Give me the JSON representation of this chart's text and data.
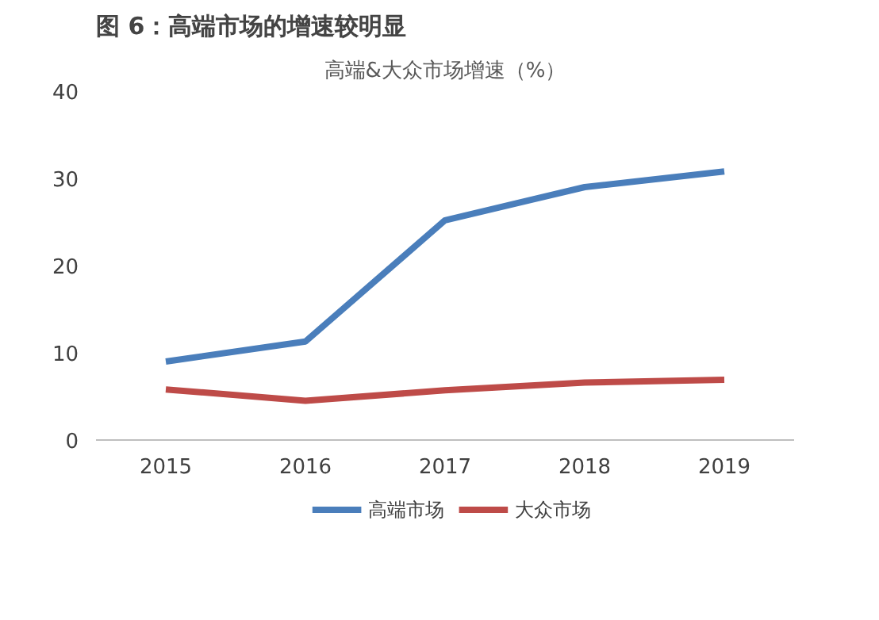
{
  "chart_data": {
    "type": "line",
    "title": "图 6：高端市场的增速较明显",
    "subtitle": "高端&大众市场增速（%）",
    "x": [
      2015,
      2016,
      2017,
      2018,
      2019
    ],
    "xlim": [
      2014.5,
      2019.5
    ],
    "xticks": [
      2015,
      2016,
      2017,
      2018,
      2019
    ],
    "ylim": [
      0,
      40
    ],
    "yticks": [
      0,
      10,
      20,
      30,
      40
    ],
    "grid": false,
    "legend": "bottom",
    "marker": "none",
    "line_style": "solid",
    "series": [
      {
        "name": "高端市场",
        "color": "#4a7ebb",
        "values": [
          9.0,
          11.3,
          25.2,
          29.0,
          30.8
        ]
      },
      {
        "name": "大众市场",
        "color": "#be4b48",
        "values": [
          5.8,
          4.5,
          5.7,
          6.6,
          6.9
        ]
      }
    ]
  }
}
